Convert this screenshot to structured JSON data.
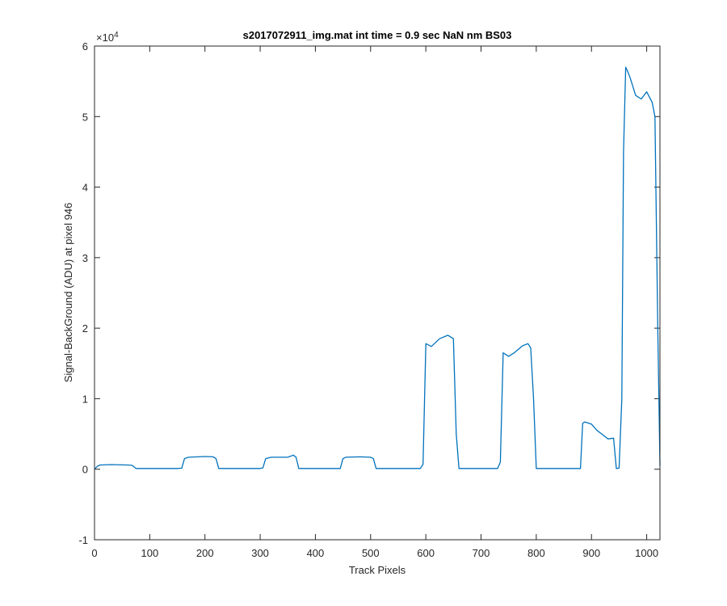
{
  "chart_data": {
    "type": "line",
    "title": "s2017072911_img.mat int time = 0.9 sec  NaN nm BS03",
    "xlabel": "Track Pixels",
    "ylabel": "Signal-BackGround (ADU) at pixel 946",
    "y_exponent_label": "×10",
    "y_exponent_power": "4",
    "xlim": [
      0,
      1024
    ],
    "ylim": [
      -10000,
      60000
    ],
    "x_ticks": [
      0,
      100,
      200,
      300,
      400,
      500,
      600,
      700,
      800,
      900,
      1000
    ],
    "x_tick_labels": [
      "0",
      "100",
      "200",
      "300",
      "400",
      "500",
      "600",
      "700",
      "800",
      "900",
      "1000"
    ],
    "y_ticks": [
      -10000,
      0,
      10000,
      20000,
      30000,
      40000,
      50000,
      60000
    ],
    "y_tick_labels": [
      "-1",
      "0",
      "1",
      "2",
      "3",
      "4",
      "5",
      "6"
    ],
    "grid": false,
    "series_color": "#0072BD",
    "series": [
      {
        "x": [
          0,
          5,
          10,
          30,
          60,
          68,
          75,
          100,
          150,
          158,
          163,
          170,
          200,
          215,
          220,
          225,
          250,
          300,
          305,
          310,
          320,
          350,
          360,
          365,
          370,
          400,
          445,
          450,
          455,
          480,
          500,
          505,
          510,
          560,
          590,
          595,
          600,
          610,
          625,
          640,
          650,
          655,
          660,
          700,
          730,
          735,
          740,
          750,
          760,
          775,
          785,
          790,
          795,
          800,
          850,
          880,
          884,
          888,
          900,
          910,
          920,
          930,
          940,
          945,
          950,
          955,
          958,
          962,
          965,
          970,
          980,
          990,
          1000,
          1010,
          1015,
          1020,
          1024
        ],
        "y": [
          0,
          400,
          600,
          650,
          600,
          550,
          100,
          100,
          100,
          150,
          1500,
          1700,
          1800,
          1750,
          1500,
          100,
          100,
          100,
          200,
          1500,
          1700,
          1700,
          2000,
          1700,
          100,
          100,
          100,
          1500,
          1700,
          1750,
          1700,
          1500,
          100,
          100,
          100,
          700,
          17800,
          17400,
          18500,
          19000,
          18500,
          5000,
          100,
          100,
          100,
          1000,
          16500,
          16000,
          16500,
          17500,
          17800,
          17200,
          10000,
          100,
          100,
          100,
          6500,
          6700,
          6400,
          5500,
          4900,
          4300,
          4400,
          100,
          150,
          10000,
          45000,
          57000,
          56500,
          55500,
          53000,
          52500,
          53500,
          52000,
          50000,
          20000,
          500
        ]
      }
    ]
  }
}
